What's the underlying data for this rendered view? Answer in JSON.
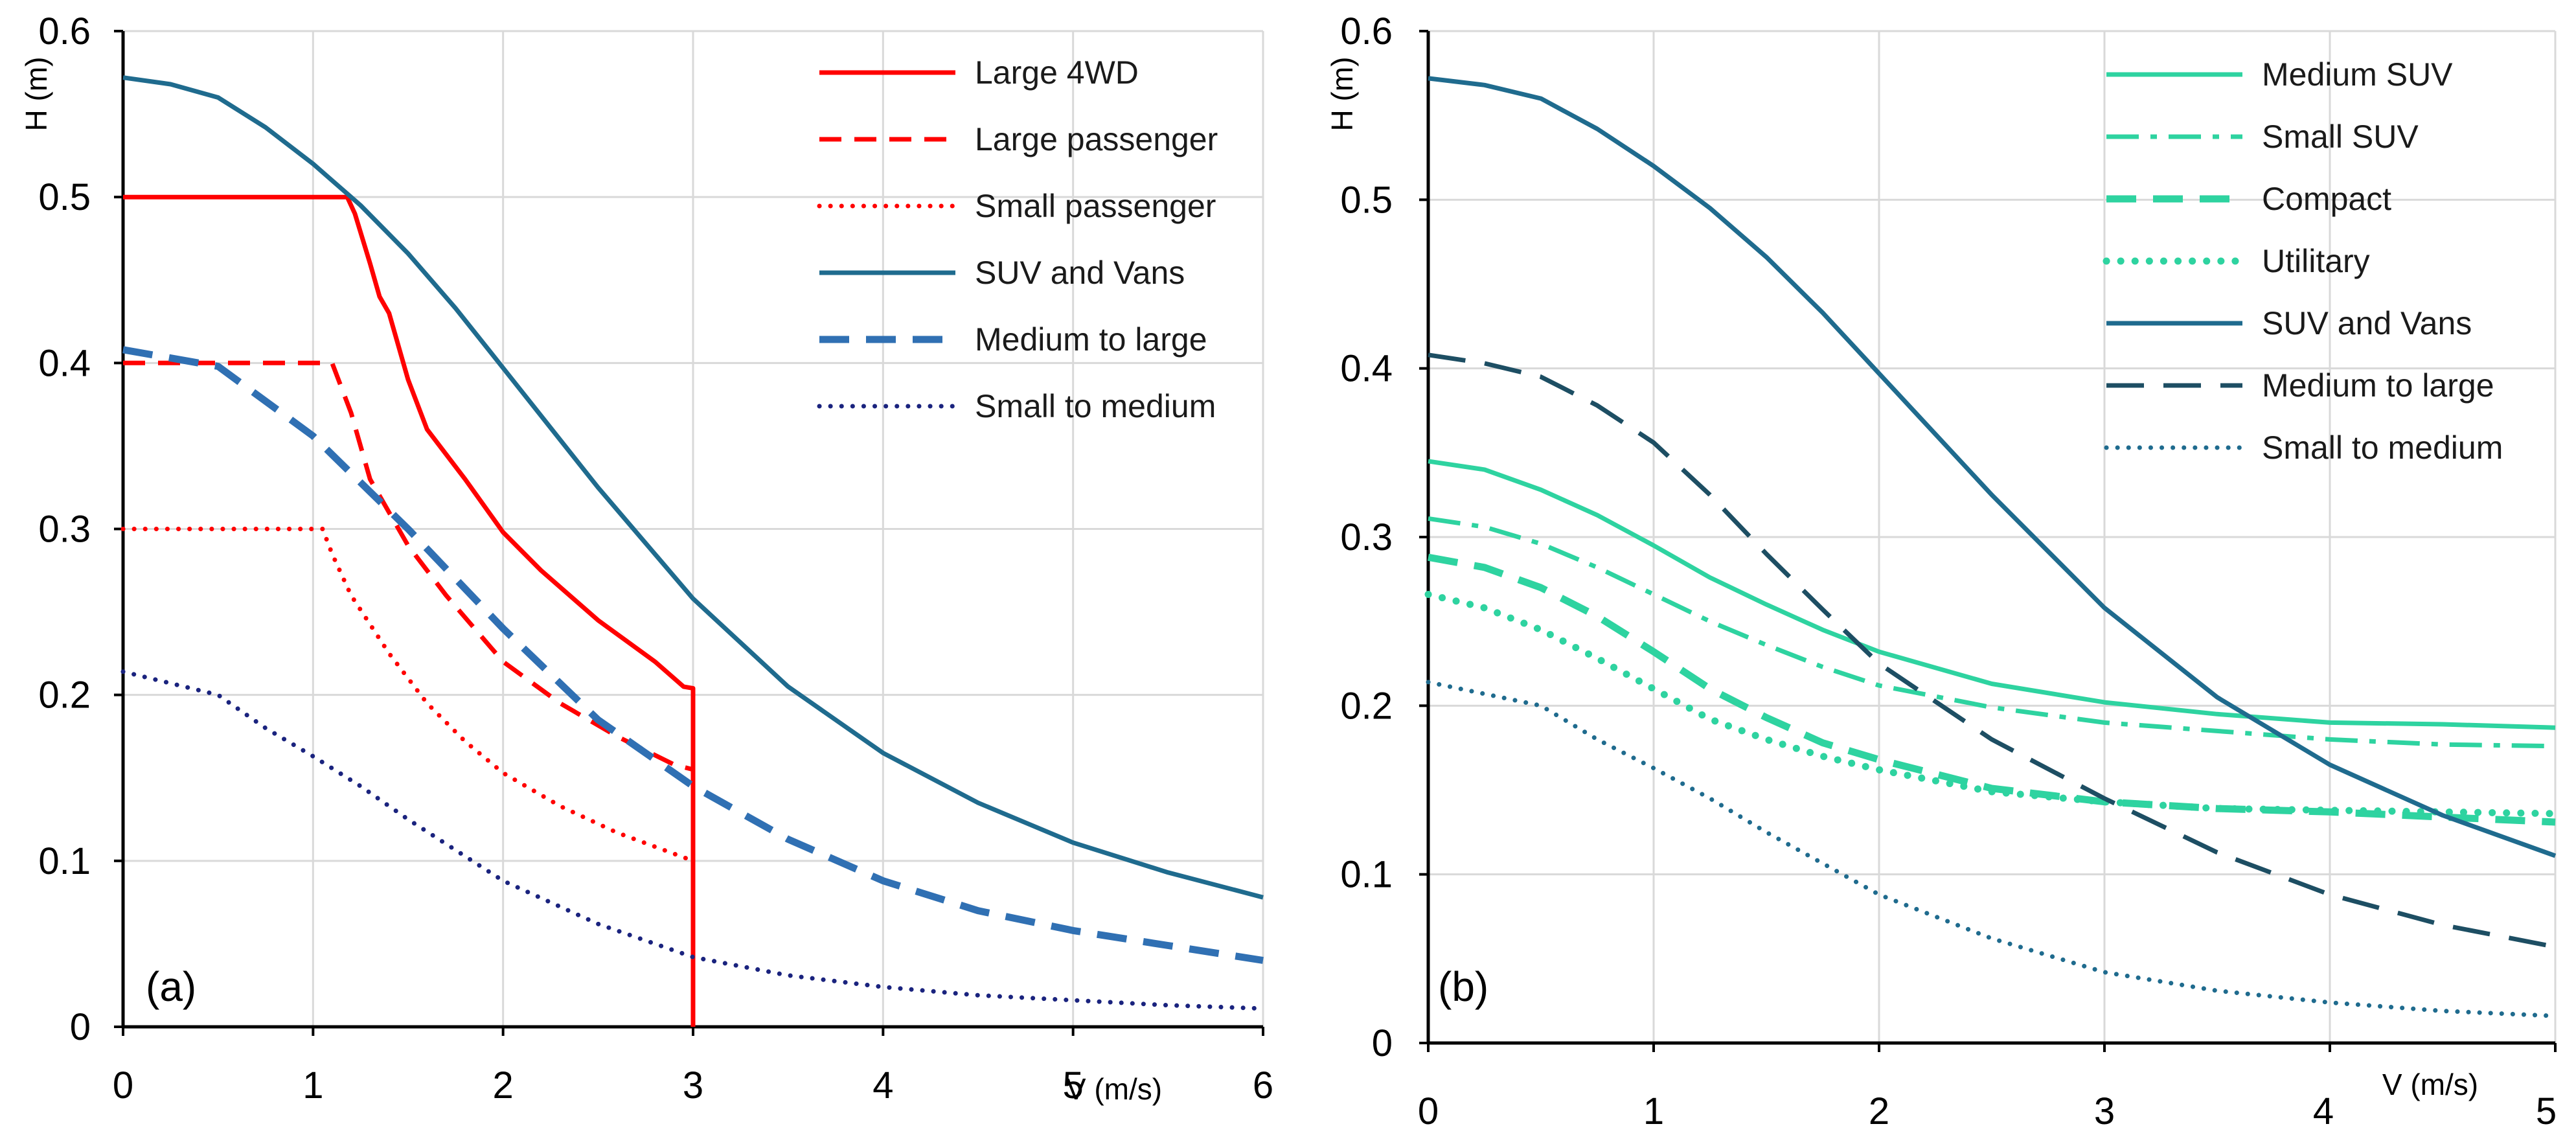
{
  "chart_data": [
    {
      "type": "line",
      "panel_label": "(a)",
      "xlabel": "V (m/s)",
      "ylabel": "H (m)",
      "xlim": [
        0,
        6
      ],
      "ylim": [
        0,
        0.6
      ],
      "grid": true,
      "legend_position": "top-right",
      "x_ticks": [
        "0",
        "1",
        "2",
        "3",
        "4",
        "5",
        "6"
      ],
      "y_ticks": [
        "0",
        "0.1",
        "0.2",
        "0.3",
        "0.4",
        "0.5",
        "0.6"
      ],
      "series": [
        {
          "name": "Large 4WD",
          "color": "#ff0000",
          "style": "solid",
          "width": "normal",
          "x": [
            0,
            1.18,
            1.22,
            1.3,
            1.35,
            1.4,
            1.5,
            1.6,
            1.8,
            2.0,
            2.2,
            2.5,
            2.8,
            2.95,
            3.0,
            3.0,
            3.0
          ],
          "y": [
            0.5,
            0.5,
            0.49,
            0.46,
            0.44,
            0.43,
            0.39,
            0.36,
            0.33,
            0.298,
            0.275,
            0.245,
            0.22,
            0.205,
            0.204,
            0.1,
            0
          ]
        },
        {
          "name": "Large passenger",
          "color": "#ff0000",
          "style": "dashed",
          "width": "normal",
          "x": [
            0,
            1.1,
            1.2,
            1.3,
            1.5,
            1.7,
            2.0,
            2.3,
            2.6,
            2.9,
            3.0,
            3.0
          ],
          "y": [
            0.4,
            0.4,
            0.37,
            0.33,
            0.29,
            0.26,
            0.22,
            0.195,
            0.175,
            0.158,
            0.155,
            0
          ]
        },
        {
          "name": "Small passenger",
          "color": "#ff0000",
          "style": "dotted",
          "width": "normal",
          "x": [
            0,
            1.05,
            1.1,
            1.2,
            1.4,
            1.6,
            1.8,
            2.0,
            2.3,
            2.6,
            3.0
          ],
          "y": [
            0.3,
            0.3,
            0.285,
            0.26,
            0.225,
            0.195,
            0.172,
            0.153,
            0.133,
            0.117,
            0.1
          ]
        },
        {
          "name": "SUV and Vans",
          "color": "#1f6b8e",
          "style": "solid",
          "width": "normal",
          "x": [
            0,
            0.25,
            0.5,
            0.75,
            1.0,
            1.25,
            1.5,
            1.75,
            2.0,
            2.5,
            3.0,
            3.5,
            4.0,
            4.5,
            5.0,
            5.5,
            6.0
          ],
          "y": [
            0.572,
            0.568,
            0.56,
            0.542,
            0.52,
            0.495,
            0.466,
            0.433,
            0.397,
            0.325,
            0.258,
            0.205,
            0.165,
            0.135,
            0.111,
            0.093,
            0.078
          ]
        },
        {
          "name": "Medium to large",
          "color": "#3070b3",
          "style": "dashed",
          "width": "thick",
          "x": [
            0,
            0.5,
            1.0,
            1.5,
            2.0,
            2.5,
            3.0,
            3.5,
            4.0,
            4.5,
            5.0,
            5.5,
            6.0
          ],
          "y": [
            0.408,
            0.398,
            0.356,
            0.3,
            0.24,
            0.185,
            0.145,
            0.113,
            0.088,
            0.07,
            0.058,
            0.049,
            0.04
          ]
        },
        {
          "name": "Small to medium",
          "color": "#1a237e",
          "style": "dotted",
          "width": "normal",
          "x": [
            0,
            0.25,
            0.5,
            0.75,
            1.0,
            1.25,
            1.5,
            2.0,
            2.5,
            3.0,
            3.5,
            4.0,
            4.5,
            5.0,
            5.5,
            6.0
          ],
          "y": [
            0.214,
            0.207,
            0.2,
            0.18,
            0.163,
            0.145,
            0.125,
            0.088,
            0.062,
            0.042,
            0.031,
            0.024,
            0.019,
            0.016,
            0.013,
            0.011
          ]
        }
      ]
    },
    {
      "type": "line",
      "panel_label": "(b)",
      "xlabel": "V (m/s)",
      "ylabel": "H (m)",
      "xlim": [
        0,
        5
      ],
      "ylim": [
        0,
        0.6
      ],
      "grid": true,
      "legend_position": "top-right",
      "x_ticks": [
        "0",
        "1",
        "2",
        "3",
        "4",
        "5"
      ],
      "y_ticks": [
        "0",
        "0.1",
        "0.2",
        "0.3",
        "0.4",
        "0.5",
        "0.6"
      ],
      "series": [
        {
          "name": "Medium SUV",
          "color": "#2ed3a0",
          "style": "solid",
          "width": "normal",
          "x": [
            0,
            0.25,
            0.5,
            0.75,
            1.0,
            1.25,
            1.5,
            1.75,
            2.0,
            2.5,
            3.0,
            3.5,
            4.0,
            4.5,
            5.0
          ],
          "y": [
            0.345,
            0.34,
            0.328,
            0.313,
            0.295,
            0.276,
            0.26,
            0.245,
            0.232,
            0.213,
            0.202,
            0.195,
            0.19,
            0.189,
            0.187
          ]
        },
        {
          "name": "Small SUV",
          "color": "#2ed3a0",
          "style": "dashdot",
          "width": "normal",
          "x": [
            0,
            0.25,
            0.5,
            0.75,
            1.0,
            1.25,
            1.5,
            1.75,
            2.0,
            2.5,
            3.0,
            3.5,
            4.0,
            4.5,
            5.0
          ],
          "y": [
            0.311,
            0.306,
            0.296,
            0.282,
            0.266,
            0.25,
            0.236,
            0.223,
            0.212,
            0.199,
            0.19,
            0.185,
            0.18,
            0.177,
            0.176
          ]
        },
        {
          "name": "Compact",
          "color": "#2ed3a0",
          "style": "dashed",
          "width": "thick",
          "x": [
            0,
            0.25,
            0.5,
            0.75,
            1.0,
            1.25,
            1.5,
            1.75,
            2.0,
            2.5,
            3.0,
            3.5,
            4.0,
            4.5,
            5.0
          ],
          "y": [
            0.288,
            0.282,
            0.27,
            0.253,
            0.232,
            0.21,
            0.193,
            0.178,
            0.168,
            0.151,
            0.143,
            0.139,
            0.137,
            0.134,
            0.131
          ]
        },
        {
          "name": "Utilitary",
          "color": "#2ed3a0",
          "style": "dotted",
          "width": "thick",
          "x": [
            0,
            0.25,
            0.5,
            0.75,
            1.0,
            1.25,
            1.5,
            1.75,
            2.0,
            2.5,
            3.0,
            3.5,
            4.0,
            4.5,
            5.0
          ],
          "y": [
            0.266,
            0.258,
            0.245,
            0.228,
            0.21,
            0.192,
            0.18,
            0.17,
            0.162,
            0.149,
            0.143,
            0.139,
            0.138,
            0.137,
            0.136
          ]
        },
        {
          "name": "SUV and Vans",
          "color": "#1f6b8e",
          "style": "solid",
          "width": "normal",
          "x": [
            0,
            0.25,
            0.5,
            0.75,
            1.0,
            1.25,
            1.5,
            1.75,
            2.0,
            2.5,
            3.0,
            3.5,
            4.0,
            4.5,
            5.0
          ],
          "y": [
            0.572,
            0.568,
            0.56,
            0.542,
            0.52,
            0.495,
            0.466,
            0.433,
            0.397,
            0.325,
            0.258,
            0.205,
            0.165,
            0.135,
            0.111
          ]
        },
        {
          "name": "Medium to large",
          "color": "#1d4e63",
          "style": "longdash",
          "width": "normal",
          "x": [
            0,
            0.25,
            0.5,
            0.75,
            1.0,
            1.25,
            1.5,
            1.75,
            2.0,
            2.5,
            3.0,
            3.5,
            4.0,
            4.5,
            5.0
          ],
          "y": [
            0.408,
            0.403,
            0.395,
            0.378,
            0.356,
            0.325,
            0.29,
            0.257,
            0.225,
            0.18,
            0.145,
            0.113,
            0.088,
            0.07,
            0.057
          ]
        },
        {
          "name": "Small to medium",
          "color": "#1f6b8e",
          "style": "dotted",
          "width": "normal",
          "x": [
            0,
            0.25,
            0.5,
            0.75,
            1.0,
            1.25,
            1.5,
            2.0,
            2.5,
            3.0,
            3.5,
            4.0,
            4.5,
            5.0
          ],
          "y": [
            0.214,
            0.207,
            0.2,
            0.18,
            0.163,
            0.145,
            0.125,
            0.088,
            0.062,
            0.042,
            0.031,
            0.024,
            0.019,
            0.016
          ]
        }
      ]
    }
  ]
}
